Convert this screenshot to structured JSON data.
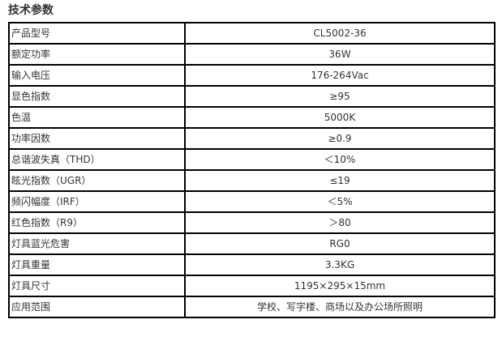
{
  "title": "技术参数",
  "rows": [
    {
      "label": "产品型号",
      "value": "CL5002-36"
    },
    {
      "label": "额定功率",
      "value": "36W"
    },
    {
      "label": "输入电压",
      "value": "176-264Vac"
    },
    {
      "label": "显色指数",
      "value": "≥95"
    },
    {
      "label": "色温",
      "value": "5000K"
    },
    {
      "label": "功率因数",
      "value": "≥0.9"
    },
    {
      "label": "总谐波失真（THD）",
      "value": "＜10%"
    },
    {
      "label": "眩光指数（UGR）",
      "value": "≤19"
    },
    {
      "label": "频闪幅度（IRF）",
      "value": "＜5%"
    },
    {
      "label": "红色指数（R9）",
      "value": "＞80"
    },
    {
      "label": "灯具蓝光危害",
      "value": "RG0"
    },
    {
      "label": "灯具重量",
      "value": "3.3KG"
    },
    {
      "label": "灯具尺寸",
      "value": "1195×295×15mm"
    },
    {
      "label": "应用范围",
      "value": "学校、写字楼、商场以及办公场所照明"
    }
  ]
}
